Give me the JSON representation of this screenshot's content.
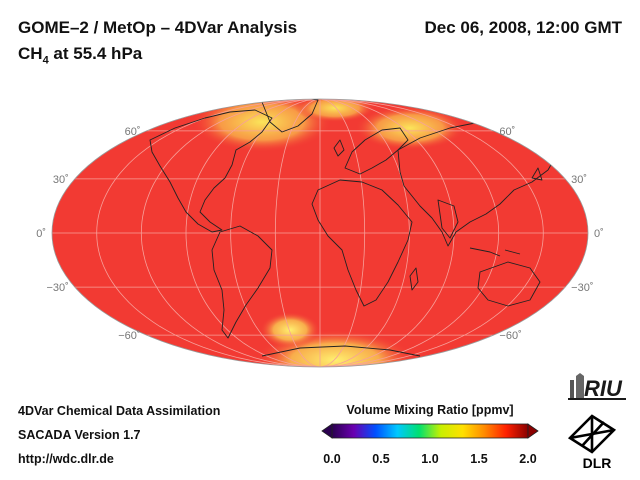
{
  "header": {
    "title": "GOME–2 / MetOp – 4DVar Analysis",
    "species_prefix": "CH",
    "species_sub": "4",
    "species_suffix": " at 55.4 hPa",
    "date": "Dec 06, 2008, 12:00 GMT"
  },
  "map": {
    "projection": "mollweide",
    "lat_labels": [
      "60˚",
      "30˚",
      "0˚",
      "−30˚",
      "−60˚"
    ],
    "lat_values": [
      60,
      30,
      0,
      -30,
      -60
    ]
  },
  "colorbar": {
    "title": "Volume Mixing Ratio [ppmv]",
    "ticks": [
      "0.0",
      "0.5",
      "1.0",
      "1.5",
      "2.0"
    ],
    "range": [
      0.0,
      2.0
    ],
    "colors": [
      "#2a004f",
      "#6a00b0",
      "#0050ff",
      "#00c8ff",
      "#00e070",
      "#c8f000",
      "#ffe000",
      "#ff8a00",
      "#ff2000",
      "#8a0000"
    ]
  },
  "footer": {
    "line1": "4DVar Chemical Data Assimilation",
    "line2": "SACADA Version 1.7",
    "line3": "http://wdc.dlr.de"
  },
  "logos": {
    "riu": "RIU",
    "dlr": "DLR"
  },
  "field_colors": {
    "background": "#f23a33",
    "high": "#f7dd4c"
  }
}
